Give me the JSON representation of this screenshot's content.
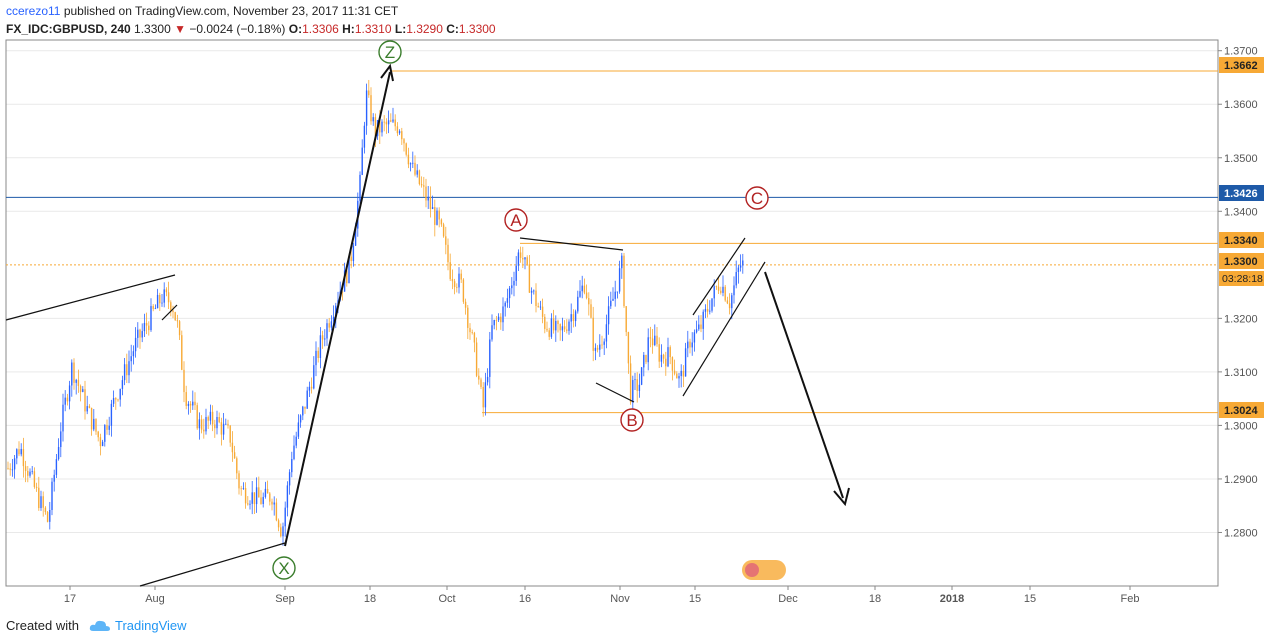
{
  "header": {
    "author": "ccerezo11",
    "published": "published on TradingView.com, November 23, 2017 11:31 CET",
    "symbol": "FX_IDC:GBPUSD, 240",
    "last": "1.3300",
    "change": "−0.0024 (−0.18%)",
    "o_label": "O:",
    "o": "1.3306",
    "h_label": "H:",
    "h": "1.3310",
    "l_label": "L:",
    "l": "1.3290",
    "c_label": "C:",
    "c": "1.3300"
  },
  "footer": {
    "created_with": "Created with",
    "brand": "TradingView"
  },
  "colors": {
    "up": "#2962ff",
    "down": "#f7a935",
    "orange": "#f7a935",
    "blue_line": "#1e5aa8",
    "grid": "#e9e9e9"
  },
  "chart_data": {
    "type": "candlestick",
    "symbol": "GBPUSD",
    "interval": "240",
    "ylim": [
      1.27,
      1.372
    ],
    "y_ticks": [
      "1.3700",
      "1.3600",
      "1.3500",
      "1.3400",
      "1.3200",
      "1.3100",
      "1.3000",
      "1.2900",
      "1.2800"
    ],
    "x_ticks": [
      "17",
      "Aug",
      "Sep",
      "18",
      "Oct",
      "16",
      "Nov",
      "15",
      "Dec",
      "18",
      "2018",
      "15",
      "Feb"
    ],
    "price_labels": [
      {
        "value": "1.3662",
        "style": "orange"
      },
      {
        "value": "1.3426",
        "style": "blue"
      },
      {
        "value": "1.3340",
        "style": "orange"
      },
      {
        "value": "1.3300",
        "style": "orange"
      },
      {
        "value": "1.3024",
        "style": "orange"
      }
    ],
    "countdown": "03:28:18",
    "horizontal_lines": [
      {
        "value": 1.3662,
        "color": "orange"
      },
      {
        "value": 1.3426,
        "color": "blue"
      },
      {
        "value": 1.334,
        "color": "orange"
      },
      {
        "value": 1.33,
        "color": "orange-dotted"
      },
      {
        "value": 1.3024,
        "color": "orange"
      }
    ],
    "wave_labels": [
      {
        "label": "Z",
        "color": "#3a7d2c",
        "near": 1.372
      },
      {
        "label": "X",
        "color": "#3a7d2c",
        "near": 1.277
      },
      {
        "label": "A",
        "color": "#b22222",
        "near": 1.3385
      },
      {
        "label": "B",
        "color": "#b22222",
        "near": 1.3008
      },
      {
        "label": "C",
        "color": "#b22222",
        "near": 1.344
      }
    ],
    "trend": {
      "from": 1.33,
      "to": 1.285,
      "direction": "down"
    }
  }
}
